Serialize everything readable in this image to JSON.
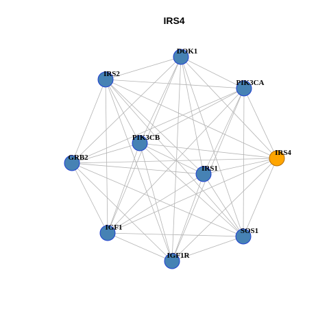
{
  "header": {
    "title": "IRS4"
  },
  "nodes": [
    {
      "label": "DOK1"
    },
    {
      "label": "IRS2"
    },
    {
      "label": "PIK3CA"
    },
    {
      "label": "PIK3CB"
    },
    {
      "label": "GRB2"
    },
    {
      "label": "IRS4"
    },
    {
      "label": "IRS1"
    },
    {
      "label": "IGF1"
    },
    {
      "label": "SOS1"
    },
    {
      "label": "IGF1R"
    }
  ]
}
